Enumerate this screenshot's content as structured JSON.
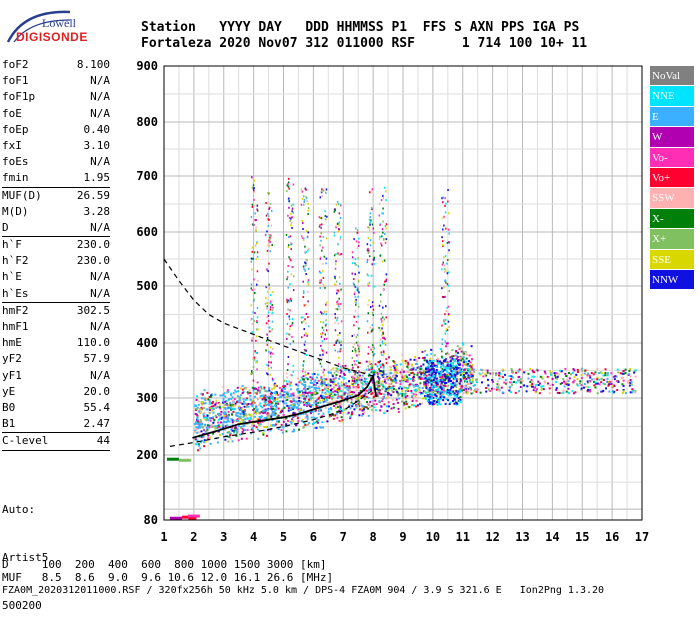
{
  "logo": {
    "line1": "Lowell",
    "line2": "DIGISONDE"
  },
  "header": {
    "row1": "Station   YYYY DAY   DDD HHMMSS P1  FFS S AXN PPS IGA PS",
    "row2": "Fortaleza 2020 Nov07 312 011000 RSF      1 714 100 10+ 11"
  },
  "params": [
    {
      "name": "foF2",
      "value": "8.100"
    },
    {
      "name": "foF1",
      "value": "N/A"
    },
    {
      "name": "foF1p",
      "value": "N/A"
    },
    {
      "name": "foE",
      "value": "N/A"
    },
    {
      "name": "foEp",
      "value": "0.40"
    },
    {
      "name": "fxI",
      "value": "3.10"
    },
    {
      "name": "foEs",
      "value": "N/A"
    },
    {
      "name": "fmin",
      "value": "1.95",
      "sep": true
    },
    {
      "name": "MUF(D)",
      "value": "26.59"
    },
    {
      "name": "M(D)",
      "value": "3.28"
    },
    {
      "name": "D",
      "value": "N/A",
      "sep": true
    },
    {
      "name": "h`F",
      "value": "230.0"
    },
    {
      "name": "h`F2",
      "value": "230.0"
    },
    {
      "name": "h`E",
      "value": "N/A"
    },
    {
      "name": "h`Es",
      "value": "N/A",
      "sep": true
    },
    {
      "name": "hmF2",
      "value": "302.5"
    },
    {
      "name": "hmF1",
      "value": "N/A"
    },
    {
      "name": "hmE",
      "value": "110.0"
    },
    {
      "name": "yF2",
      "value": "57.9"
    },
    {
      "name": "yF1",
      "value": "N/A"
    },
    {
      "name": "yE",
      "value": "20.0"
    },
    {
      "name": "B0",
      "value": "55.4"
    },
    {
      "name": "B1",
      "value": "2.47",
      "sep": true
    },
    {
      "name": "C-level",
      "value": "44",
      "sep": true
    }
  ],
  "auto": {
    "line1": "Auto:",
    "line2": "Artist5",
    "line3": "500200"
  },
  "legend": [
    {
      "label": "NoVal",
      "color": "#808080"
    },
    {
      "label": "NNE",
      "color": "#00e5ff"
    },
    {
      "label": "E",
      "color": "#3ab0ff"
    },
    {
      "label": "W",
      "color": "#b000b0"
    },
    {
      "label": "Vo-",
      "color": "#ff2eb4"
    },
    {
      "label": "Vo+",
      "color": "#ff0030"
    },
    {
      "label": "SSW",
      "color": "#ffb0b0"
    },
    {
      "label": "X-",
      "color": "#00800a"
    },
    {
      "label": "X+",
      "color": "#80c060"
    },
    {
      "label": "SSE",
      "color": "#d8d800"
    },
    {
      "label": "NNW",
      "color": "#1010e0"
    }
  ],
  "footer": {
    "d_row": "D     100  200  400  600  800 1000 1500 3000 [km]",
    "muf_row": "MUF   8.5  8.6  9.0  9.6 10.6 12.0 16.1 26.6 [MHz]",
    "file_row": "FZA0M_2020312011000.RSF / 320fx256h 50 kHz 5.0 km / DPS-4 FZA0M 904 / 3.9 S 321.6 E   Ion2Png 1.3.20"
  },
  "chart_data": {
    "type": "scatter",
    "xlim": [
      1,
      17
    ],
    "ylim": [
      80,
      900
    ],
    "xticks": [
      1,
      2,
      3,
      4,
      5,
      6,
      7,
      8,
      9,
      10,
      11,
      12,
      13,
      14,
      15,
      16,
      17
    ],
    "yticks": [
      80,
      200,
      300,
      400,
      500,
      600,
      700,
      800,
      900
    ],
    "grid": true,
    "series": [
      {
        "name": "fmin marker",
        "color": "#ff0030",
        "x": [
          1.95
        ],
        "y": [
          85
        ]
      }
    ],
    "traces": [
      {
        "kind": "profile-curve",
        "color": "#000000",
        "x": [
          1.95,
          2.5,
          3.0,
          3.5,
          4.0,
          4.5,
          5.0,
          5.5,
          6.0,
          6.5,
          7.0,
          7.5,
          7.8,
          8.0,
          8.1
        ],
        "y": [
          230,
          238,
          246,
          254,
          258,
          262,
          266,
          272,
          280,
          288,
          296,
          305,
          320,
          340,
          302
        ]
      },
      {
        "kind": "muf-dashed",
        "color": "#000000",
        "x": [
          1.0,
          1.5,
          2.0,
          2.5,
          3.0,
          3.5,
          4.0,
          5.0,
          6.0,
          7.0,
          7.5,
          8.0
        ],
        "y": [
          550,
          510,
          475,
          450,
          435,
          425,
          415,
          395,
          375,
          355,
          348,
          340
        ]
      },
      {
        "kind": "lower-dashed",
        "color": "#000000",
        "x": [
          1.2,
          2.0,
          3.0,
          4.0,
          5.0,
          6.0,
          7.0,
          7.5,
          8.0
        ],
        "y": [
          215,
          222,
          232,
          240,
          250,
          262,
          278,
          295,
          315
        ]
      }
    ]
  }
}
